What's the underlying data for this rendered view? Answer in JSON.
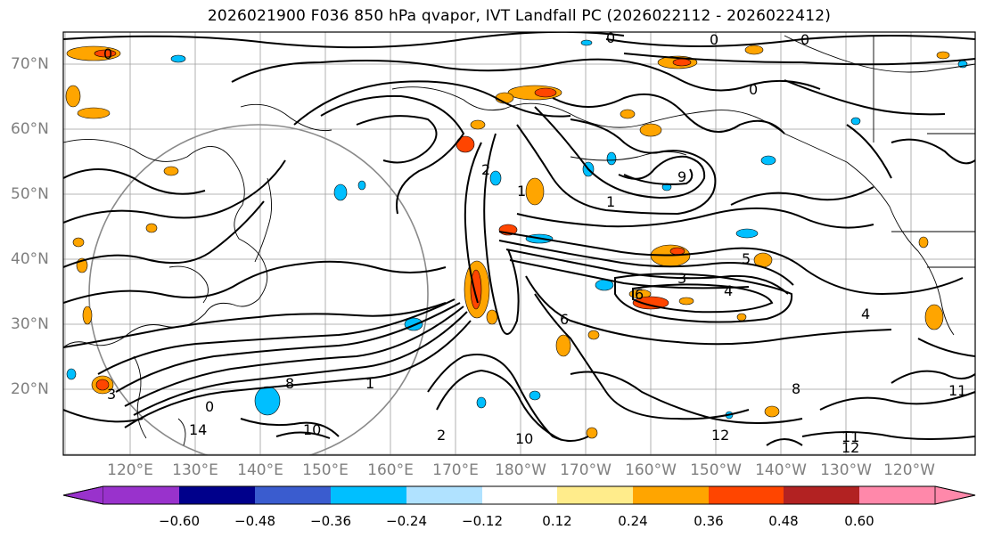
{
  "title": "2026021900 F036 850 hPa qvapor, IVT Landfall PC (2026022112 - 2026022412)",
  "lat_labels": [
    "70°N",
    "60°N",
    "50°N",
    "40°N",
    "30°N",
    "20°N"
  ],
  "lon_labels": [
    "120°E",
    "130°E",
    "140°E",
    "150°E",
    "160°E",
    "170°E",
    "180°W",
    "170°W",
    "160°W",
    "150°W",
    "140°W",
    "130°W",
    "120°W"
  ],
  "colorbar": {
    "ticks": [
      "−0.60",
      "−0.48",
      "−0.36",
      "−0.24",
      "−0.12",
      "0.12",
      "0.24",
      "0.36",
      "0.48",
      "0.60"
    ],
    "colors": [
      "#9932cc",
      "#00008b",
      "#3a5ccf",
      "#00bfff",
      "#b0e2ff",
      "#ffffff",
      "#ffec8b",
      "#ffa500",
      "#ff4500",
      "#b22222",
      "#ff88aa"
    ]
  },
  "contour_labels": [
    {
      "text": "0"
    },
    {
      "text": "0"
    },
    {
      "text": "0"
    },
    {
      "text": "0"
    },
    {
      "text": "0"
    },
    {
      "text": "0"
    },
    {
      "text": "1"
    },
    {
      "text": "1"
    },
    {
      "text": "1"
    },
    {
      "text": "2"
    },
    {
      "text": "2"
    },
    {
      "text": "3"
    },
    {
      "text": "3"
    },
    {
      "text": "4"
    },
    {
      "text": "4"
    },
    {
      "text": "5"
    },
    {
      "text": "6"
    },
    {
      "text": "6"
    },
    {
      "text": "8"
    },
    {
      "text": "8"
    },
    {
      "text": "9"
    },
    {
      "text": "10"
    },
    {
      "text": "10"
    },
    {
      "text": "11"
    },
    {
      "text": "11"
    },
    {
      "text": "12"
    },
    {
      "text": "12"
    },
    {
      "text": "14"
    }
  ]
}
